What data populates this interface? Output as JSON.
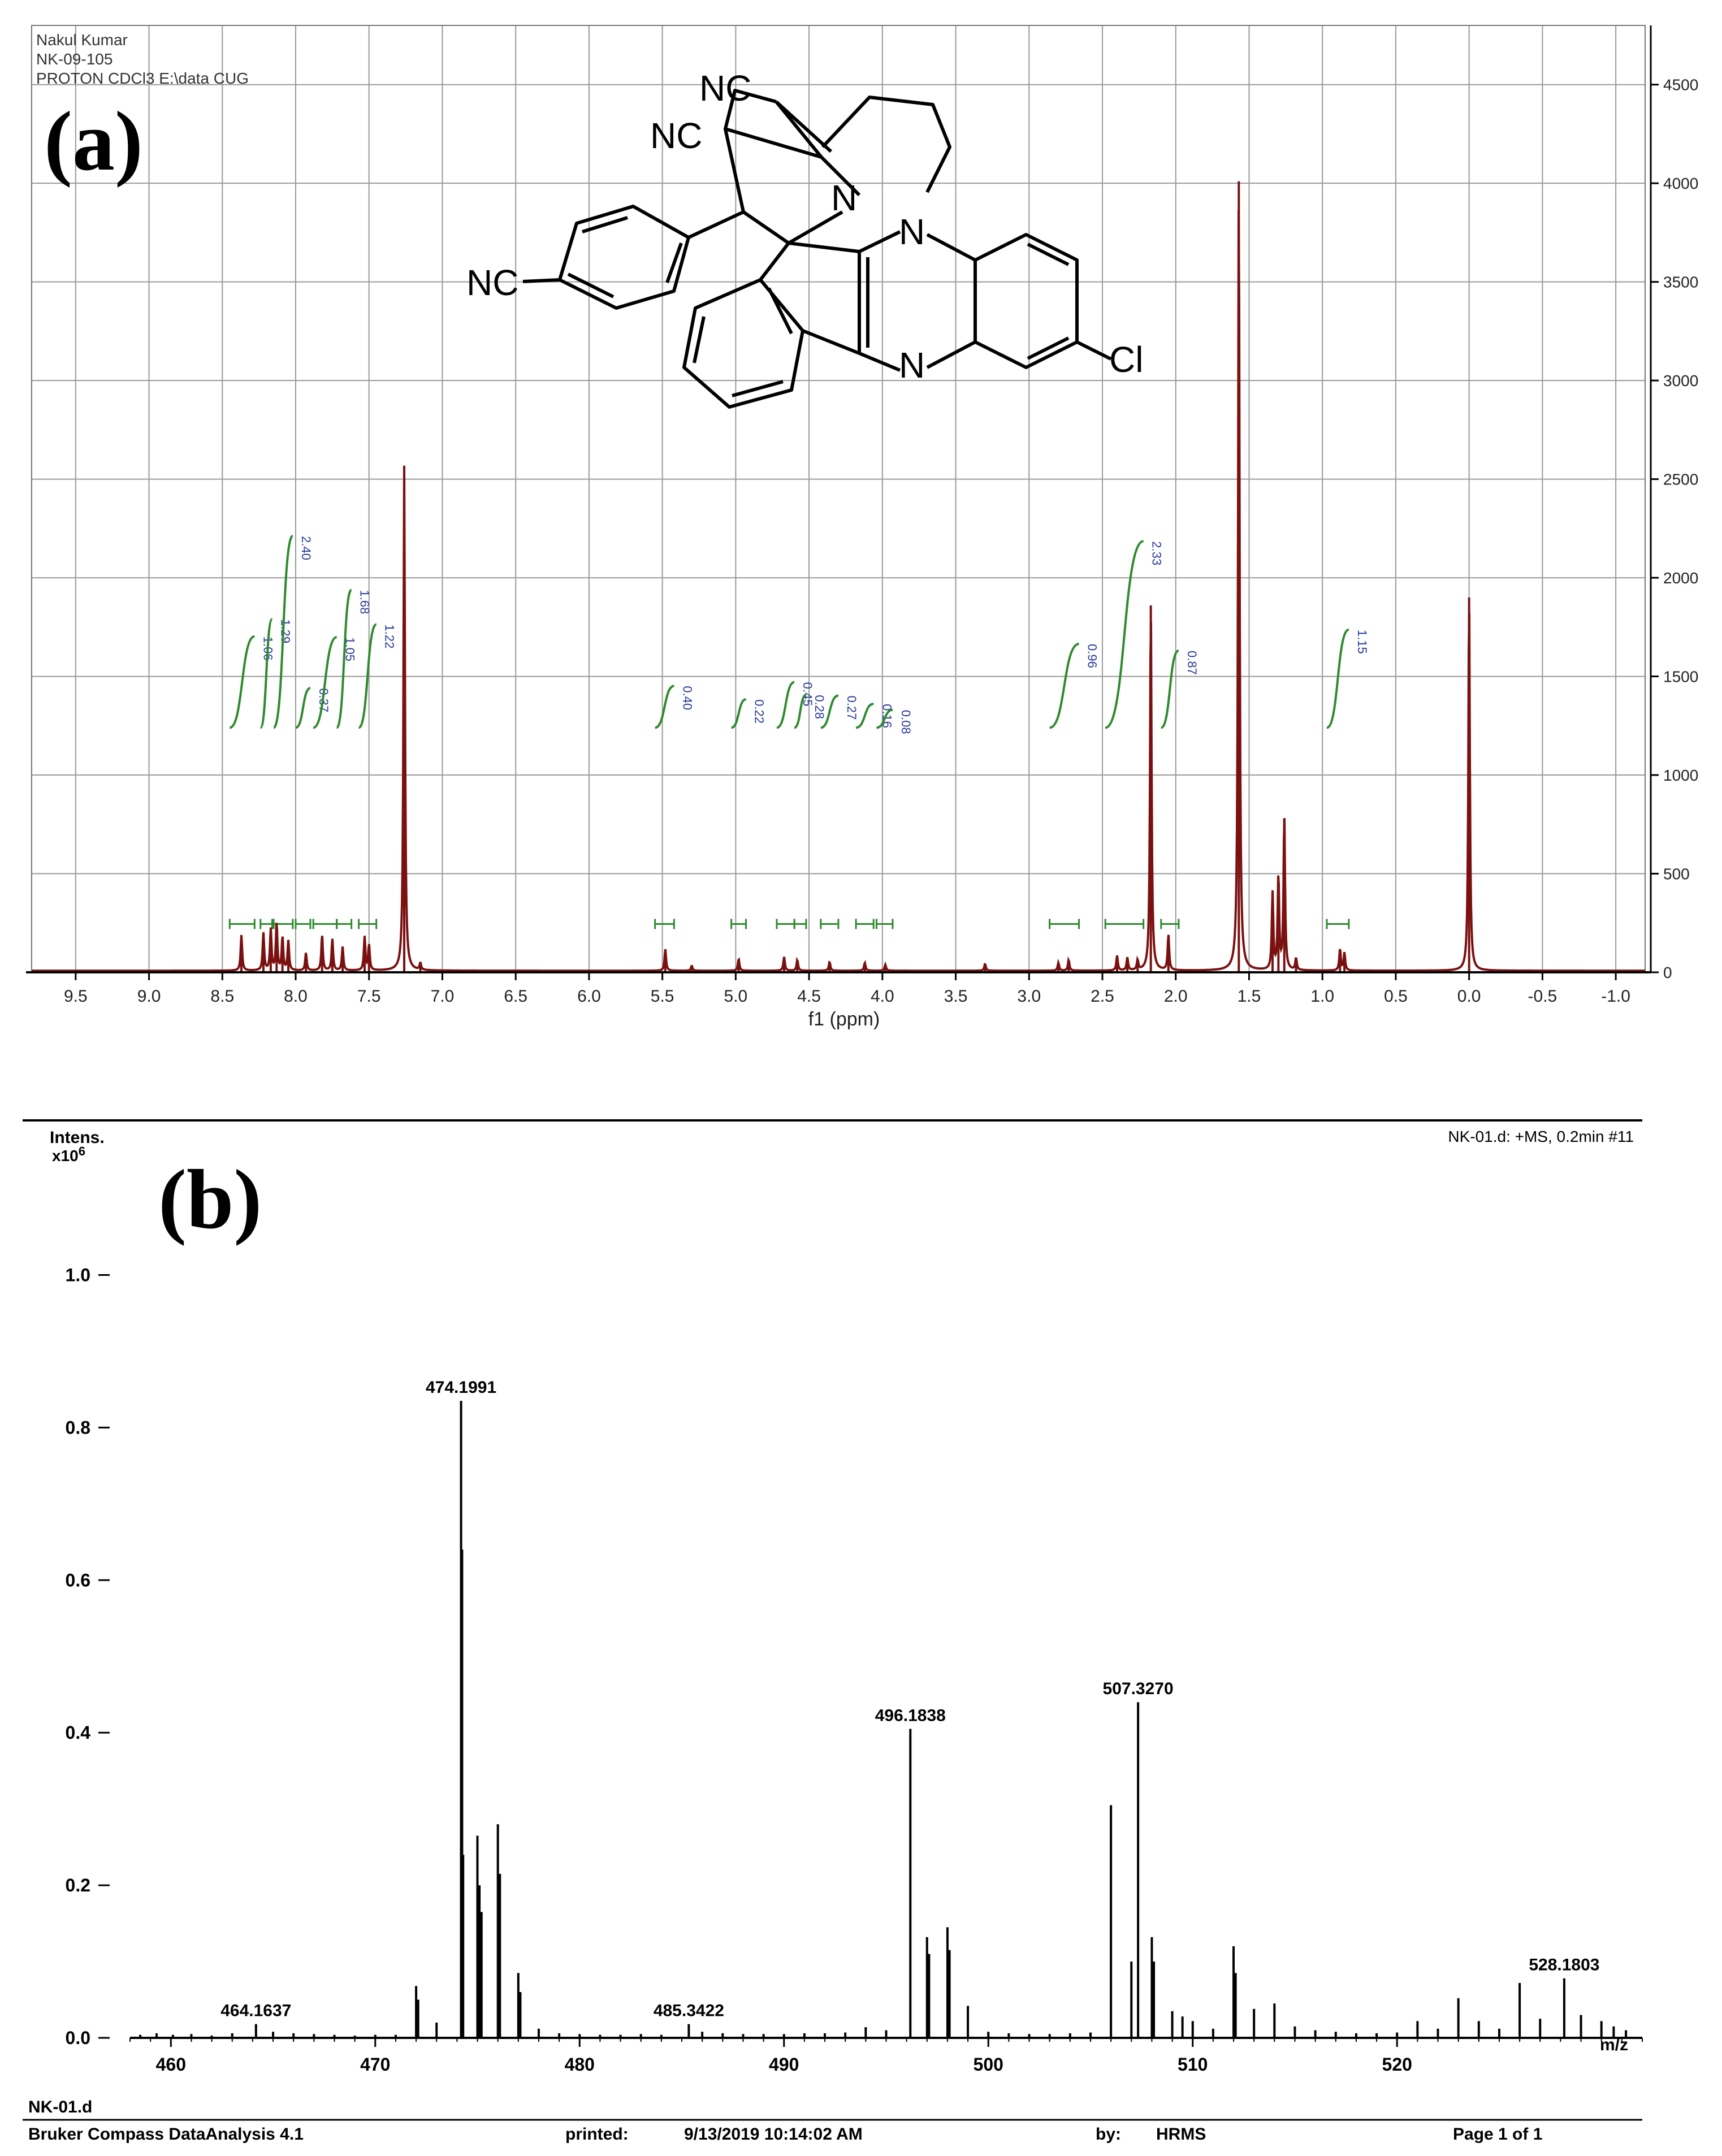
{
  "nmr": {
    "header_lines": [
      "Nakul Kumar",
      "NK-09-105",
      "PROTON CDCl3 E:\\data CUG"
    ],
    "panel_label": "(a)",
    "xlabel": "f1 (ppm)",
    "structure_labels": {
      "nc_top": "NC",
      "nc_mid": "NC",
      "nc_left": "NC",
      "n_pyrrolidine": "N",
      "n_top": "N",
      "n_bottom": "N",
      "cl": "Cl"
    },
    "colors": {
      "spectrum": "#7a1010",
      "integral": "#2f8a2f",
      "integral_label": "#2a3a9a",
      "grid": "#9a9a9a"
    }
  },
  "ms": {
    "panel_label": "(b)",
    "y_title": "Intens.",
    "y_exp": "x10",
    "y_exp_sup": "6",
    "scan_info": "NK-01.d: +MS, 0.2min #11",
    "x_unit_label": "m/z",
    "footer": {
      "file": "NK-01.d",
      "software": "Bruker Compass DataAnalysis 4.1",
      "printed_label": "printed:",
      "printed_value": "9/13/2019 10:14:02 AM",
      "by_label": "by:",
      "by_value": "HRMS",
      "page": "Page 1 of 1"
    },
    "colors": {
      "peak": "#000000"
    }
  },
  "chart_data": [
    {
      "type": "line",
      "x_reversed": true,
      "xlim": [
        -1.2,
        9.8
      ],
      "ylim": [
        0,
        4800
      ],
      "x_ticks": [
        9.5,
        9.0,
        8.5,
        8.0,
        7.5,
        7.0,
        6.5,
        6.0,
        5.5,
        5.0,
        4.5,
        4.0,
        3.5,
        3.0,
        2.5,
        2.0,
        1.5,
        1.0,
        0.5,
        0.0,
        -0.5,
        -1.0
      ],
      "x_tick_labels": [
        "9.5",
        "9.0",
        "8.5",
        "8.0",
        "7.5",
        "7.0",
        "6.5",
        "6.0",
        "5.5",
        "5.0",
        "4.5",
        "4.0",
        "3.5",
        "3.0",
        "2.5",
        "2.0",
        "1.5",
        "1.0",
        "0.5",
        "0.0",
        "-0.5",
        "-1.0"
      ],
      "y_ticks": [
        0,
        500,
        1000,
        1500,
        2000,
        2500,
        3000,
        3500,
        4000,
        4500
      ],
      "y_tick_labels": [
        "0",
        "500",
        "1000",
        "1500",
        "2000",
        "2500",
        "3000",
        "3500",
        "4000",
        "4500"
      ],
      "y_axis_side": "right",
      "grid": true,
      "peaks": [
        {
          "x": 8.37,
          "y": 180
        },
        {
          "x": 8.22,
          "y": 190
        },
        {
          "x": 8.17,
          "y": 210
        },
        {
          "x": 8.13,
          "y": 240
        },
        {
          "x": 8.09,
          "y": 170
        },
        {
          "x": 8.05,
          "y": 150
        },
        {
          "x": 7.93,
          "y": 90
        },
        {
          "x": 7.82,
          "y": 180
        },
        {
          "x": 7.75,
          "y": 160
        },
        {
          "x": 7.68,
          "y": 120
        },
        {
          "x": 7.53,
          "y": 170
        },
        {
          "x": 7.5,
          "y": 130
        },
        {
          "x": 7.26,
          "y": 2560
        },
        {
          "x": 7.15,
          "y": 35
        },
        {
          "x": 5.48,
          "y": 110
        },
        {
          "x": 5.3,
          "y": 25
        },
        {
          "x": 4.98,
          "y": 60
        },
        {
          "x": 4.67,
          "y": 70
        },
        {
          "x": 4.58,
          "y": 55
        },
        {
          "x": 4.36,
          "y": 45
        },
        {
          "x": 4.12,
          "y": 40
        },
        {
          "x": 3.98,
          "y": 30
        },
        {
          "x": 3.3,
          "y": 35
        },
        {
          "x": 2.8,
          "y": 40
        },
        {
          "x": 2.73,
          "y": 55
        },
        {
          "x": 2.4,
          "y": 75
        },
        {
          "x": 2.33,
          "y": 65
        },
        {
          "x": 2.26,
          "y": 50
        },
        {
          "x": 2.17,
          "y": 1860
        },
        {
          "x": 2.05,
          "y": 180
        },
        {
          "x": 1.57,
          "y": 4010
        },
        {
          "x": 1.34,
          "y": 390
        },
        {
          "x": 1.3,
          "y": 480
        },
        {
          "x": 1.26,
          "y": 780
        },
        {
          "x": 1.18,
          "y": 60
        },
        {
          "x": 0.88,
          "y": 110
        },
        {
          "x": 0.85,
          "y": 90
        },
        {
          "x": 0.0,
          "y": 1900
        }
      ],
      "integrals": [
        {
          "from": 8.45,
          "to": 8.28,
          "value": "1.06"
        },
        {
          "from": 8.24,
          "to": 8.16,
          "value": "1.29"
        },
        {
          "from": 8.15,
          "to": 8.02,
          "value": "2.40"
        },
        {
          "from": 8.0,
          "to": 7.9,
          "value": "0.37"
        },
        {
          "from": 7.88,
          "to": 7.72,
          "value": "1.05"
        },
        {
          "from": 7.72,
          "to": 7.62,
          "value": "1.68"
        },
        {
          "from": 7.57,
          "to": 7.45,
          "value": "1.22"
        },
        {
          "from": 5.55,
          "to": 5.42,
          "value": "0.40"
        },
        {
          "from": 5.03,
          "to": 4.93,
          "value": "0.22"
        },
        {
          "from": 4.72,
          "to": 4.6,
          "value": "0.45"
        },
        {
          "from": 4.6,
          "to": 4.52,
          "value": "0.28"
        },
        {
          "from": 4.42,
          "to": 4.3,
          "value": "0.27"
        },
        {
          "from": 4.18,
          "to": 4.06,
          "value": "0.16"
        },
        {
          "from": 4.04,
          "to": 3.93,
          "value": "0.08"
        },
        {
          "from": 2.86,
          "to": 2.66,
          "value": "0.96"
        },
        {
          "from": 2.48,
          "to": 2.22,
          "value": "2.33"
        },
        {
          "from": 2.1,
          "to": 1.98,
          "value": "0.87"
        },
        {
          "from": 0.97,
          "to": 0.82,
          "value": "1.15"
        }
      ]
    },
    {
      "type": "bar",
      "xlim": [
        458,
        532
      ],
      "ylim": [
        0,
        1.13
      ],
      "x_ticks": [
        460,
        470,
        480,
        490,
        500,
        510,
        520
      ],
      "x_tick_labels": [
        "460",
        "470",
        "480",
        "490",
        "500",
        "510",
        "520"
      ],
      "y_ticks": [
        0.0,
        0.2,
        0.4,
        0.6,
        0.8,
        1.0
      ],
      "y_tick_labels": [
        "0.0",
        "0.2",
        "0.4",
        "0.6",
        "0.8",
        "1.0"
      ],
      "peaks": [
        {
          "mz": 458.5,
          "i": 0.004
        },
        {
          "mz": 459.3,
          "i": 0.006
        },
        {
          "mz": 460.1,
          "i": 0.004
        },
        {
          "mz": 461.0,
          "i": 0.005
        },
        {
          "mz": 462.0,
          "i": 0.003
        },
        {
          "mz": 463.0,
          "i": 0.006
        },
        {
          "mz": 464.1637,
          "i": 0.018
        },
        {
          "mz": 465.0,
          "i": 0.008
        },
        {
          "mz": 466.0,
          "i": 0.006
        },
        {
          "mz": 467.0,
          "i": 0.005
        },
        {
          "mz": 468.0,
          "i": 0.004
        },
        {
          "mz": 469.0,
          "i": 0.003
        },
        {
          "mz": 470.0,
          "i": 0.004
        },
        {
          "mz": 471.0,
          "i": 0.004
        },
        {
          "mz": 472.0,
          "i": 0.068
        },
        {
          "mz": 472.1,
          "i": 0.05
        },
        {
          "mz": 473.0,
          "i": 0.02
        },
        {
          "mz": 474.1991,
          "i": 0.835
        },
        {
          "mz": 474.25,
          "i": 0.64
        },
        {
          "mz": 474.3,
          "i": 0.24
        },
        {
          "mz": 475.0,
          "i": 0.265
        },
        {
          "mz": 475.1,
          "i": 0.2
        },
        {
          "mz": 475.2,
          "i": 0.165
        },
        {
          "mz": 476.0,
          "i": 0.28
        },
        {
          "mz": 476.1,
          "i": 0.215
        },
        {
          "mz": 477.0,
          "i": 0.085
        },
        {
          "mz": 477.1,
          "i": 0.06
        },
        {
          "mz": 478.0,
          "i": 0.012
        },
        {
          "mz": 479.0,
          "i": 0.006
        },
        {
          "mz": 480.0,
          "i": 0.005
        },
        {
          "mz": 481.0,
          "i": 0.004
        },
        {
          "mz": 482.0,
          "i": 0.004
        },
        {
          "mz": 483.0,
          "i": 0.005
        },
        {
          "mz": 484.0,
          "i": 0.004
        },
        {
          "mz": 485.3422,
          "i": 0.018
        },
        {
          "mz": 486.0,
          "i": 0.008
        },
        {
          "mz": 487.0,
          "i": 0.006
        },
        {
          "mz": 488.0,
          "i": 0.005
        },
        {
          "mz": 489.0,
          "i": 0.005
        },
        {
          "mz": 490.0,
          "i": 0.005
        },
        {
          "mz": 491.0,
          "i": 0.006
        },
        {
          "mz": 492.0,
          "i": 0.006
        },
        {
          "mz": 493.0,
          "i": 0.007
        },
        {
          "mz": 494.0,
          "i": 0.014
        },
        {
          "mz": 495.0,
          "i": 0.01
        },
        {
          "mz": 496.1838,
          "i": 0.405
        },
        {
          "mz": 497.0,
          "i": 0.132
        },
        {
          "mz": 497.1,
          "i": 0.11
        },
        {
          "mz": 498.0,
          "i": 0.145
        },
        {
          "mz": 498.1,
          "i": 0.115
        },
        {
          "mz": 499.0,
          "i": 0.042
        },
        {
          "mz": 500.0,
          "i": 0.008
        },
        {
          "mz": 501.0,
          "i": 0.006
        },
        {
          "mz": 502.0,
          "i": 0.005
        },
        {
          "mz": 503.0,
          "i": 0.005
        },
        {
          "mz": 504.0,
          "i": 0.006
        },
        {
          "mz": 505.0,
          "i": 0.007
        },
        {
          "mz": 506.0,
          "i": 0.305
        },
        {
          "mz": 507.0,
          "i": 0.1
        },
        {
          "mz": 507.327,
          "i": 0.44
        },
        {
          "mz": 508.0,
          "i": 0.132
        },
        {
          "mz": 508.1,
          "i": 0.1
        },
        {
          "mz": 509.0,
          "i": 0.035
        },
        {
          "mz": 509.5,
          "i": 0.028
        },
        {
          "mz": 510.0,
          "i": 0.022
        },
        {
          "mz": 511.0,
          "i": 0.012
        },
        {
          "mz": 512.0,
          "i": 0.12
        },
        {
          "mz": 512.1,
          "i": 0.085
        },
        {
          "mz": 513.0,
          "i": 0.038
        },
        {
          "mz": 514.0,
          "i": 0.045
        },
        {
          "mz": 515.0,
          "i": 0.015
        },
        {
          "mz": 516.0,
          "i": 0.01
        },
        {
          "mz": 517.0,
          "i": 0.008
        },
        {
          "mz": 518.0,
          "i": 0.006
        },
        {
          "mz": 519.0,
          "i": 0.006
        },
        {
          "mz": 520.0,
          "i": 0.007
        },
        {
          "mz": 521.0,
          "i": 0.022
        },
        {
          "mz": 522.0,
          "i": 0.012
        },
        {
          "mz": 523.0,
          "i": 0.052
        },
        {
          "mz": 524.0,
          "i": 0.022
        },
        {
          "mz": 525.0,
          "i": 0.012
        },
        {
          "mz": 526.0,
          "i": 0.072
        },
        {
          "mz": 527.0,
          "i": 0.025
        },
        {
          "mz": 528.1803,
          "i": 0.078
        },
        {
          "mz": 529.0,
          "i": 0.03
        },
        {
          "mz": 530.0,
          "i": 0.022
        },
        {
          "mz": 530.6,
          "i": 0.015
        },
        {
          "mz": 531.2,
          "i": 0.01
        }
      ],
      "peak_labels": [
        {
          "mz": 464.1637,
          "i": 0.018,
          "text": "464.1637"
        },
        {
          "mz": 474.1991,
          "i": 0.835,
          "text": "474.1991"
        },
        {
          "mz": 485.3422,
          "i": 0.018,
          "text": "485.3422"
        },
        {
          "mz": 496.1838,
          "i": 0.405,
          "text": "496.1838"
        },
        {
          "mz": 507.327,
          "i": 0.44,
          "text": "507.3270"
        },
        {
          "mz": 528.1803,
          "i": 0.078,
          "text": "528.1803"
        }
      ]
    }
  ]
}
